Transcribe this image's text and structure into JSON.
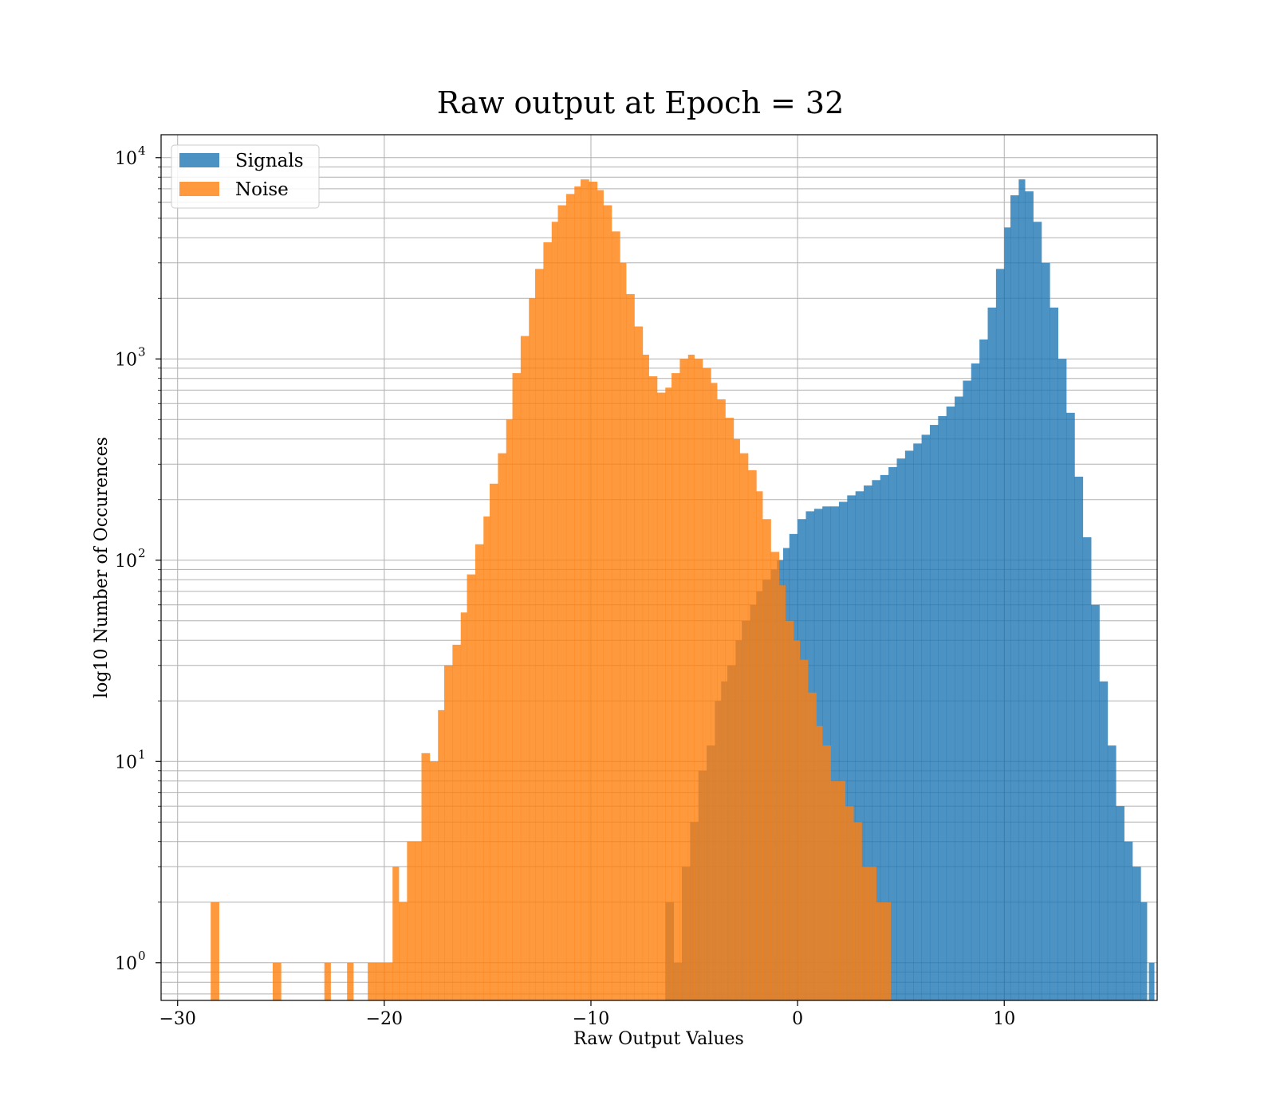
{
  "chart_data": {
    "type": "bar",
    "title": "Raw output at Epoch = 32",
    "xlabel": "Raw Output Values",
    "ylabel": "log10 Number of Occurences",
    "xlim": [
      -30.8,
      17.4
    ],
    "ylim": [
      0.65,
      13000
    ],
    "yscale": "log",
    "xticks": [
      -30,
      -20,
      -10,
      0,
      10
    ],
    "xtick_labels": [
      "−30",
      "−20",
      "−10",
      "0",
      "10"
    ],
    "yticks": [
      1,
      10,
      100,
      1000,
      10000
    ],
    "ytick_labels": [
      {
        "base": "10",
        "exp": "0"
      },
      {
        "base": "10",
        "exp": "1"
      },
      {
        "base": "10",
        "exp": "2"
      },
      {
        "base": "10",
        "exp": "3"
      },
      {
        "base": "10",
        "exp": "4"
      }
    ],
    "grid": true,
    "legend_position": "top-left",
    "series": [
      {
        "name": "Signals",
        "color": "#1f77b4",
        "bins": [
          [
            -6.4,
            -6.0,
            2
          ],
          [
            -6.0,
            -5.6,
            1
          ],
          [
            -5.6,
            -5.2,
            3
          ],
          [
            -5.2,
            -4.8,
            5
          ],
          [
            -4.8,
            -4.4,
            9
          ],
          [
            -4.4,
            -4.0,
            12
          ],
          [
            -4.0,
            -3.7,
            20
          ],
          [
            -3.7,
            -3.4,
            25
          ],
          [
            -3.4,
            -3.0,
            30
          ],
          [
            -3.0,
            -2.7,
            40
          ],
          [
            -2.7,
            -2.3,
            50
          ],
          [
            -2.3,
            -2.0,
            60
          ],
          [
            -2.0,
            -1.7,
            70
          ],
          [
            -1.7,
            -1.3,
            80
          ],
          [
            -1.3,
            -1.0,
            90
          ],
          [
            -1.0,
            -0.7,
            100
          ],
          [
            -0.7,
            -0.4,
            115
          ],
          [
            -0.4,
            0.0,
            135
          ],
          [
            0.0,
            0.4,
            160
          ],
          [
            0.4,
            0.8,
            175
          ],
          [
            0.8,
            1.2,
            180
          ],
          [
            1.2,
            1.6,
            185
          ],
          [
            1.6,
            2.0,
            185
          ],
          [
            2.0,
            2.4,
            195
          ],
          [
            2.4,
            2.8,
            210
          ],
          [
            2.8,
            3.2,
            220
          ],
          [
            3.2,
            3.6,
            235
          ],
          [
            3.6,
            4.0,
            250
          ],
          [
            4.0,
            4.4,
            265
          ],
          [
            4.4,
            4.8,
            290
          ],
          [
            4.8,
            5.2,
            320
          ],
          [
            5.2,
            5.6,
            350
          ],
          [
            5.6,
            6.0,
            380
          ],
          [
            6.0,
            6.4,
            420
          ],
          [
            6.4,
            6.8,
            470
          ],
          [
            6.8,
            7.2,
            520
          ],
          [
            7.2,
            7.6,
            580
          ],
          [
            7.6,
            8.0,
            650
          ],
          [
            8.0,
            8.4,
            780
          ],
          [
            8.4,
            8.8,
            950
          ],
          [
            8.8,
            9.2,
            1250
          ],
          [
            9.2,
            9.6,
            1800
          ],
          [
            9.6,
            10.0,
            2800
          ],
          [
            10.0,
            10.3,
            4500
          ],
          [
            10.3,
            10.7,
            6500
          ],
          [
            10.7,
            11.0,
            7800
          ],
          [
            11.0,
            11.4,
            6800
          ],
          [
            11.4,
            11.8,
            4800
          ],
          [
            11.8,
            12.2,
            3000
          ],
          [
            12.2,
            12.6,
            1800
          ],
          [
            12.6,
            13.0,
            1000
          ],
          [
            13.0,
            13.4,
            540
          ],
          [
            13.4,
            13.8,
            260
          ],
          [
            13.8,
            14.2,
            130
          ],
          [
            14.2,
            14.6,
            60
          ],
          [
            14.6,
            15.0,
            25
          ],
          [
            15.0,
            15.4,
            12
          ],
          [
            15.4,
            15.8,
            6
          ],
          [
            15.8,
            16.2,
            4
          ],
          [
            16.2,
            16.6,
            3
          ],
          [
            16.6,
            16.9,
            2
          ],
          [
            17.0,
            17.25,
            1
          ]
        ]
      },
      {
        "name": "Noise",
        "color": "#ff7f0e",
        "bins": [
          [
            -28.4,
            -28.0,
            2
          ],
          [
            -25.4,
            -25.0,
            1
          ],
          [
            -22.9,
            -22.6,
            1
          ],
          [
            -21.8,
            -21.5,
            1
          ],
          [
            -20.8,
            -20.4,
            1
          ],
          [
            -20.4,
            -20.0,
            1
          ],
          [
            -20.0,
            -19.6,
            1
          ],
          [
            -19.6,
            -19.3,
            3
          ],
          [
            -19.3,
            -18.9,
            2
          ],
          [
            -18.9,
            -18.5,
            4
          ],
          [
            -18.5,
            -18.2,
            4
          ],
          [
            -18.2,
            -17.8,
            11
          ],
          [
            -17.8,
            -17.4,
            10
          ],
          [
            -17.4,
            -17.1,
            18
          ],
          [
            -17.1,
            -16.7,
            30
          ],
          [
            -16.7,
            -16.3,
            38
          ],
          [
            -16.3,
            -16.0,
            55
          ],
          [
            -16.0,
            -15.6,
            85
          ],
          [
            -15.6,
            -15.2,
            120
          ],
          [
            -15.2,
            -14.9,
            165
          ],
          [
            -14.9,
            -14.5,
            240
          ],
          [
            -14.5,
            -14.1,
            340
          ],
          [
            -14.1,
            -13.8,
            500
          ],
          [
            -13.8,
            -13.4,
            850
          ],
          [
            -13.4,
            -13.0,
            1300
          ],
          [
            -13.0,
            -12.7,
            2000
          ],
          [
            -12.7,
            -12.3,
            2800
          ],
          [
            -12.3,
            -11.9,
            3800
          ],
          [
            -11.9,
            -11.6,
            4800
          ],
          [
            -11.6,
            -11.2,
            5800
          ],
          [
            -11.2,
            -10.8,
            6600
          ],
          [
            -10.8,
            -10.5,
            7200
          ],
          [
            -10.5,
            -10.1,
            7800
          ],
          [
            -10.1,
            -9.7,
            7600
          ],
          [
            -9.7,
            -9.4,
            6900
          ],
          [
            -9.4,
            -9.0,
            5800
          ],
          [
            -9.0,
            -8.6,
            4300
          ],
          [
            -8.6,
            -8.3,
            3000
          ],
          [
            -8.3,
            -7.9,
            2100
          ],
          [
            -7.9,
            -7.5,
            1450
          ],
          [
            -7.5,
            -7.2,
            1050
          ],
          [
            -7.2,
            -6.8,
            820
          ],
          [
            -6.8,
            -6.4,
            680
          ],
          [
            -6.4,
            -6.1,
            720
          ],
          [
            -6.1,
            -5.7,
            850
          ],
          [
            -5.7,
            -5.3,
            1000
          ],
          [
            -5.3,
            -5.0,
            1050
          ],
          [
            -5.0,
            -4.6,
            1000
          ],
          [
            -4.6,
            -4.2,
            900
          ],
          [
            -4.2,
            -3.9,
            760
          ],
          [
            -3.9,
            -3.5,
            630
          ],
          [
            -3.5,
            -3.1,
            510
          ],
          [
            -3.1,
            -2.8,
            400
          ],
          [
            -2.8,
            -2.4,
            340
          ],
          [
            -2.4,
            -2.0,
            280
          ],
          [
            -2.0,
            -1.7,
            220
          ],
          [
            -1.7,
            -1.3,
            160
          ],
          [
            -1.3,
            -0.9,
            110
          ],
          [
            -0.9,
            -0.6,
            75
          ],
          [
            -0.6,
            -0.2,
            50
          ],
          [
            -0.2,
            0.1,
            40
          ],
          [
            0.1,
            0.5,
            32
          ],
          [
            0.5,
            0.9,
            22
          ],
          [
            0.9,
            1.2,
            15
          ],
          [
            1.2,
            1.6,
            12
          ],
          [
            1.6,
            2.0,
            8
          ],
          [
            2.0,
            2.3,
            8
          ],
          [
            2.3,
            2.7,
            6
          ],
          [
            2.7,
            3.1,
            5
          ],
          [
            3.1,
            3.4,
            3
          ],
          [
            3.4,
            3.8,
            3
          ],
          [
            3.8,
            4.1,
            2
          ],
          [
            4.1,
            4.5,
            2
          ]
        ]
      }
    ]
  }
}
